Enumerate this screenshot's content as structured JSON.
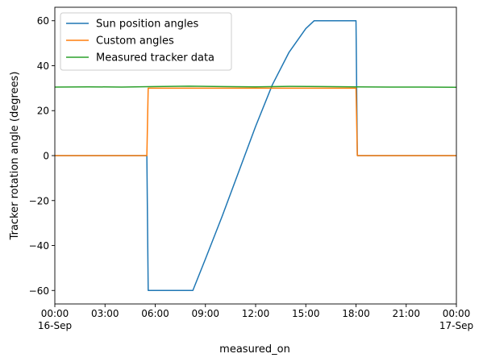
{
  "chart_data": {
    "type": "line",
    "xlabel": "measured_on",
    "ylabel": "Tracker rotation angle (degrees)",
    "xlim": [
      0,
      24
    ],
    "ylim": [
      -66,
      66
    ],
    "x_unit": "hours since 16-Sep 00:00",
    "x_ticks": [
      {
        "value": 0,
        "label": "00:00",
        "sublabel": "16-Sep"
      },
      {
        "value": 3,
        "label": "03:00",
        "sublabel": ""
      },
      {
        "value": 6,
        "label": "06:00",
        "sublabel": ""
      },
      {
        "value": 9,
        "label": "09:00",
        "sublabel": ""
      },
      {
        "value": 12,
        "label": "12:00",
        "sublabel": ""
      },
      {
        "value": 15,
        "label": "15:00",
        "sublabel": ""
      },
      {
        "value": 18,
        "label": "18:00",
        "sublabel": ""
      },
      {
        "value": 21,
        "label": "21:00",
        "sublabel": ""
      },
      {
        "value": 24,
        "label": "00:00",
        "sublabel": "17-Sep"
      }
    ],
    "y_ticks": [
      {
        "value": 60,
        "label": "60"
      },
      {
        "value": 40,
        "label": "40"
      },
      {
        "value": 20,
        "label": "20"
      },
      {
        "value": 0,
        "label": "0"
      },
      {
        "value": -20,
        "label": "−20"
      },
      {
        "value": -40,
        "label": "−40"
      },
      {
        "value": -60,
        "label": "−60"
      }
    ],
    "grid": false,
    "legend_position": "top-left",
    "series": [
      {
        "name": "Sun position angles",
        "color": "#1f77b4",
        "points": [
          [
            0,
            0
          ],
          [
            5.5,
            0
          ],
          [
            5.58,
            -60
          ],
          [
            8.25,
            -60
          ],
          [
            9,
            -46
          ],
          [
            10,
            -27
          ],
          [
            11,
            -7
          ],
          [
            12,
            13
          ],
          [
            13,
            31.5
          ],
          [
            14,
            46
          ],
          [
            15,
            56.5
          ],
          [
            15.5,
            60
          ],
          [
            18.0,
            60
          ],
          [
            18.08,
            0
          ],
          [
            24,
            0
          ]
        ]
      },
      {
        "name": "Custom angles",
        "color": "#ff7f0e",
        "points": [
          [
            0,
            0
          ],
          [
            5.5,
            0
          ],
          [
            5.58,
            30
          ],
          [
            18.0,
            30
          ],
          [
            18.08,
            0
          ],
          [
            24,
            0
          ]
        ]
      },
      {
        "name": "Measured tracker data",
        "color": "#2ca02c",
        "points": [
          [
            0,
            30.5
          ],
          [
            2,
            30.6
          ],
          [
            4,
            30.5
          ],
          [
            6,
            30.7
          ],
          [
            8,
            30.9
          ],
          [
            10,
            30.7
          ],
          [
            12,
            30.6
          ],
          [
            14,
            30.8
          ],
          [
            16,
            30.7
          ],
          [
            18,
            30.6
          ],
          [
            20,
            30.5
          ],
          [
            22,
            30.5
          ],
          [
            24,
            30.4
          ]
        ]
      }
    ]
  }
}
